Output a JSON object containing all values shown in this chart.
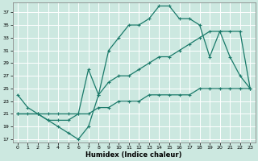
{
  "xlabel": "Humidex (Indice chaleur)",
  "bg_color": "#cce8e0",
  "line_color": "#1a7a6a",
  "grid_color": "#ffffff",
  "xlim": [
    -0.5,
    23.5
  ],
  "ylim": [
    16.5,
    38.5
  ],
  "yticks": [
    17,
    19,
    21,
    23,
    25,
    27,
    29,
    31,
    33,
    35,
    37
  ],
  "xticks": [
    0,
    1,
    2,
    3,
    4,
    5,
    6,
    7,
    8,
    9,
    10,
    11,
    12,
    13,
    14,
    15,
    16,
    17,
    18,
    19,
    20,
    21,
    22,
    23
  ],
  "line1_x": [
    0,
    1,
    2,
    3,
    4,
    5,
    6,
    7,
    8,
    9,
    10,
    11,
    12,
    13,
    14,
    15,
    16,
    17,
    18,
    19,
    20,
    21,
    22,
    23
  ],
  "line1_y": [
    24,
    22,
    21,
    20,
    19,
    18,
    17,
    19,
    24,
    31,
    33,
    35,
    35,
    36,
    38,
    38,
    36,
    36,
    35,
    30,
    34,
    30,
    27,
    25
  ],
  "line2_x": [
    0,
    2,
    3,
    4,
    5,
    6,
    7,
    8,
    9,
    10,
    11,
    12,
    13,
    14,
    15,
    16,
    17,
    18,
    19,
    20,
    21,
    22,
    23
  ],
  "line2_y": [
    21,
    21,
    20,
    20,
    20,
    21,
    28,
    24,
    26,
    27,
    27,
    28,
    29,
    30,
    30,
    31,
    32,
    33,
    34,
    34,
    34,
    34,
    25
  ],
  "line3_x": [
    0,
    1,
    2,
    3,
    4,
    5,
    6,
    7,
    8,
    9,
    10,
    11,
    12,
    13,
    14,
    15,
    16,
    17,
    18,
    19,
    20,
    21,
    22,
    23
  ],
  "line3_y": [
    21,
    21,
    21,
    21,
    21,
    21,
    21,
    21,
    22,
    22,
    23,
    23,
    23,
    24,
    24,
    24,
    24,
    24,
    25,
    25,
    25,
    25,
    25,
    25
  ]
}
